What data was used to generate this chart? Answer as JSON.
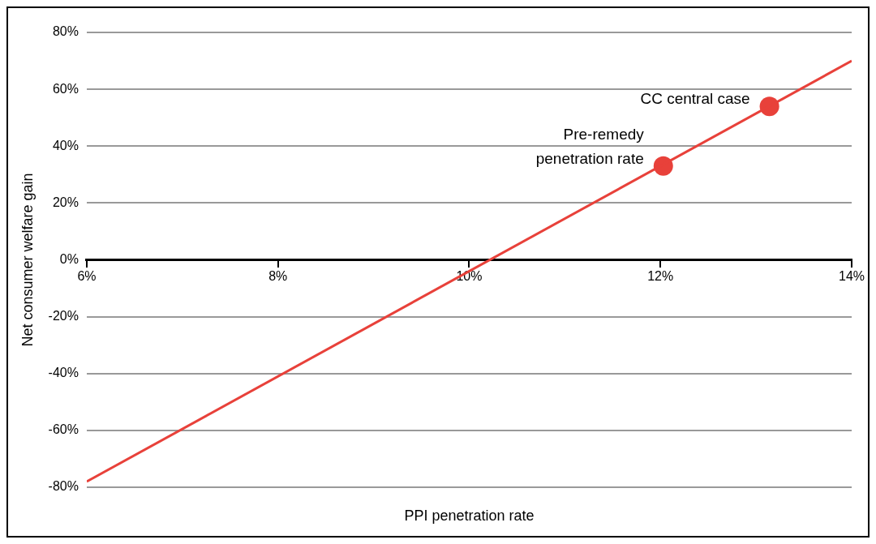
{
  "chart_data": {
    "type": "line",
    "xlabel": "PPI penetration rate",
    "ylabel": "Net consumer welfare gain",
    "xlim": [
      6,
      14
    ],
    "xticks": [
      {
        "value": 6,
        "label": "6%"
      },
      {
        "value": 8,
        "label": "8%"
      },
      {
        "value": 10,
        "label": "10%"
      },
      {
        "value": 12,
        "label": "12%"
      },
      {
        "value": 14,
        "label": "14%"
      }
    ],
    "ylim": [
      -80,
      80
    ],
    "yticks": [
      {
        "value": -80,
        "label": "-80%"
      },
      {
        "value": -60,
        "label": "-60%"
      },
      {
        "value": -40,
        "label": "-40%"
      },
      {
        "value": -20,
        "label": "-20%"
      },
      {
        "value": 0,
        "label": "0%"
      },
      {
        "value": 20,
        "label": "20%"
      },
      {
        "value": 40,
        "label": "40%"
      },
      {
        "value": 60,
        "label": "60%"
      },
      {
        "value": 80,
        "label": "80%"
      }
    ],
    "series": [
      {
        "color": "#e8413a",
        "x": [
          6,
          14
        ],
        "values": [
          -78,
          70
        ],
        "marker": "none"
      },
      {
        "type": "scatter",
        "color": "#e8413a",
        "x": [
          12.03,
          13.14
        ],
        "values": [
          33,
          54
        ],
        "marker": "circle"
      }
    ],
    "annotations": [
      {
        "text": "Pre-remedy penetration rate",
        "x": 12.03,
        "y": 33
      },
      {
        "text": "CC central case",
        "x": 13.14,
        "y": 54
      }
    ],
    "grid": "y",
    "legend": false
  }
}
